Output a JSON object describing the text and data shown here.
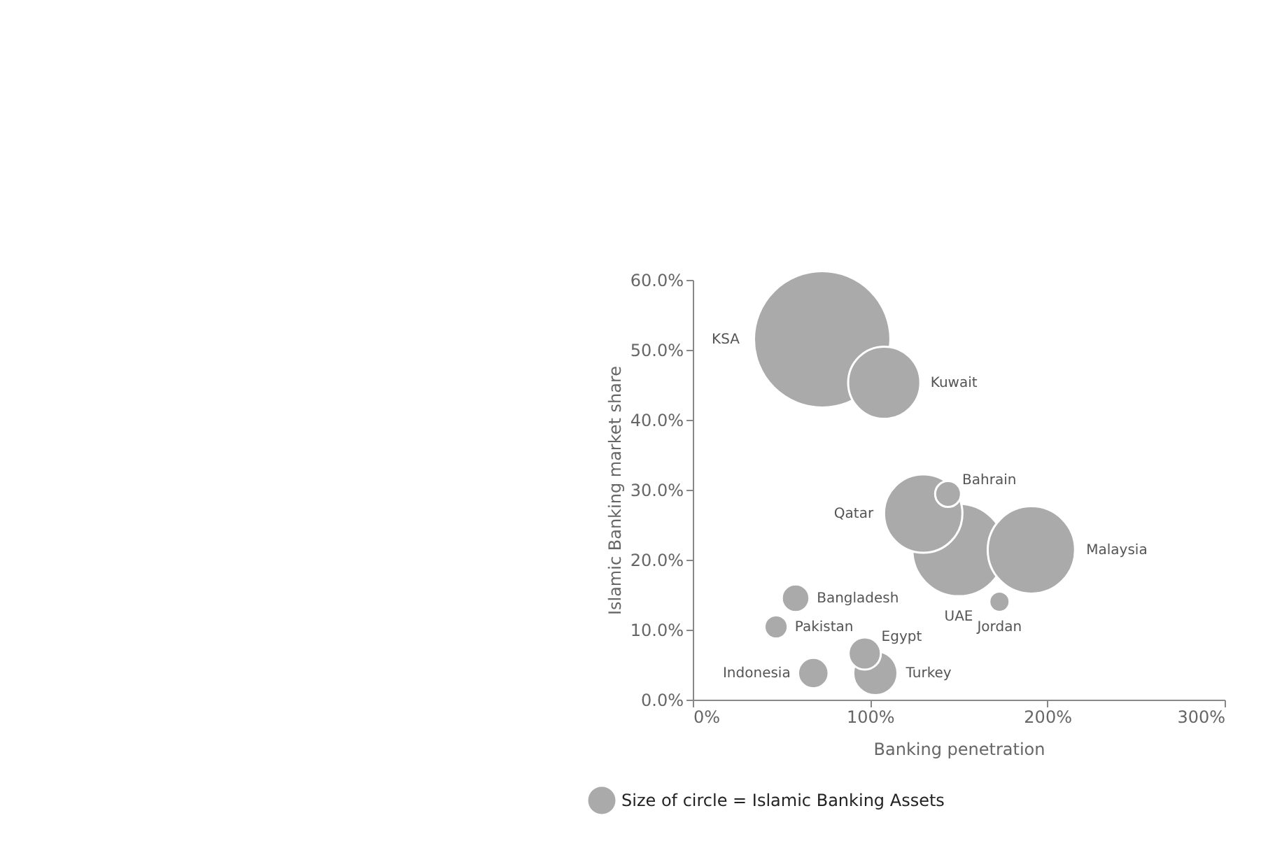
{
  "chart_data": {
    "type": "bubble",
    "xlabel": "Banking penetration",
    "ylabel": "Islamic Banking market share",
    "xlim": [
      0,
      300
    ],
    "xticks": [
      {
        "value": 0,
        "label": "0%"
      },
      {
        "value": 100,
        "label": "100%"
      },
      {
        "value": 200,
        "label": "200%"
      },
      {
        "value": 300,
        "label": "300%"
      }
    ],
    "ylim": [
      0,
      60
    ],
    "yticks": [
      {
        "value": 0,
        "label": "0.0%"
      },
      {
        "value": 10,
        "label": "10.0%"
      },
      {
        "value": 20,
        "label": "20.0%"
      },
      {
        "value": 30,
        "label": "30.0%"
      },
      {
        "value": 40,
        "label": "40.0%"
      },
      {
        "value": 50,
        "label": "50.0%"
      },
      {
        "value": 60,
        "label": "60.0%"
      }
    ],
    "grid": false,
    "series": [
      {
        "name": "KSA",
        "color": "#aaaaaa",
        "x": [
          73
        ],
        "values": [
          51.5
        ],
        "sizes": [
          1
        ]
      },
      {
        "name": "Kuwait",
        "color": "#aaaaaa",
        "x": [
          108
        ],
        "values": [
          45.3
        ],
        "sizes": [
          0.28
        ]
      },
      {
        "name": "UAE",
        "color": "#aaaaaa",
        "x": [
          150
        ],
        "values": [
          21.4
        ],
        "sizes": [
          0.46
        ]
      },
      {
        "name": "Qatar",
        "color": "#aaaaaa",
        "x": [
          130
        ],
        "values": [
          26.6
        ],
        "sizes": [
          0.33
        ]
      },
      {
        "name": "Bahrain",
        "color": "#aaaaaa",
        "x": [
          144
        ],
        "values": [
          29.4
        ],
        "sizes": [
          0.036
        ]
      },
      {
        "name": "Malaysia",
        "color": "#aaaaaa",
        "x": [
          191
        ],
        "values": [
          21.4
        ],
        "sizes": [
          0.41
        ]
      },
      {
        "name": "Jordan",
        "color": "#aaaaaa",
        "x": [
          173
        ],
        "values": [
          14.0
        ],
        "sizes": [
          0.022
        ]
      },
      {
        "name": "Bangladesh",
        "color": "#aaaaaa",
        "x": [
          58
        ],
        "values": [
          14.5
        ],
        "sizes": [
          0.041
        ]
      },
      {
        "name": "Pakistan",
        "color": "#aaaaaa",
        "x": [
          47
        ],
        "values": [
          10.4
        ],
        "sizes": [
          0.029
        ]
      },
      {
        "name": "Indonesia",
        "color": "#aaaaaa",
        "x": [
          68
        ],
        "values": [
          3.8
        ],
        "sizes": [
          0.05
        ]
      },
      {
        "name": "Turkey",
        "color": "#aaaaaa",
        "x": [
          103
        ],
        "values": [
          3.8
        ],
        "sizes": [
          0.105
        ]
      },
      {
        "name": "Egypt",
        "color": "#aaaaaa",
        "x": [
          97
        ],
        "values": [
          6.6
        ],
        "sizes": [
          0.056
        ]
      }
    ],
    "annotations": [
      "Size of circle = Islamic Banking Assets"
    ]
  }
}
